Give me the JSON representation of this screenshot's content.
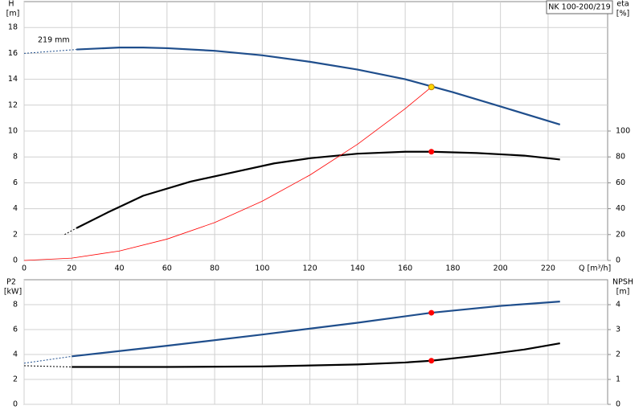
{
  "chart_data": [
    {
      "type": "line",
      "title": "NK 100-200/219",
      "annotation": "219 mm",
      "xlabel": "Q [m³/h]",
      "ylabel": "H",
      "yunit": "[m]",
      "y2label": "eta",
      "y2unit": "[%]",
      "xlim": [
        0,
        245
      ],
      "xticks": [
        0,
        20,
        40,
        60,
        80,
        100,
        120,
        140,
        160,
        180,
        200,
        220
      ],
      "ylim": [
        0,
        20
      ],
      "yticks": [
        0,
        2,
        4,
        6,
        8,
        10,
        12,
        14,
        16,
        18
      ],
      "y2lim": [
        0,
        200
      ],
      "y2ticks": [
        0,
        20,
        40,
        60,
        80,
        100
      ],
      "grid": true,
      "series": [
        {
          "color": "#1f4e8c",
          "dashed": true,
          "x": [
            0,
            22
          ],
          "values": [
            16.0,
            16.3
          ]
        },
        {
          "color": "#1f4e8c",
          "x": [
            22,
            40,
            50,
            60,
            80,
            100,
            120,
            140,
            160,
            171,
            180,
            200,
            225
          ],
          "values": [
            16.3,
            16.45,
            16.45,
            16.4,
            16.2,
            15.85,
            15.35,
            14.75,
            14.0,
            13.45,
            13.0,
            11.9,
            10.5
          ]
        },
        {
          "color": "#000000",
          "dashed": true,
          "axis": "y2",
          "x": [
            17,
            22
          ],
          "values": [
            20,
            25
          ]
        },
        {
          "color": "#000000",
          "axis": "y2",
          "x": [
            22,
            35,
            50,
            70,
            90,
            105,
            120,
            140,
            160,
            171,
            190,
            210,
            225
          ],
          "values": [
            25,
            37,
            50,
            61,
            69,
            75,
            79,
            82.5,
            84,
            84,
            83,
            81,
            78
          ]
        },
        {
          "color": "#ff0000",
          "thin": true,
          "x": [
            0,
            20,
            40,
            60,
            80,
            100,
            120,
            140,
            160,
            171
          ],
          "values": [
            0,
            0.18,
            0.73,
            1.65,
            2.93,
            4.58,
            6.6,
            8.98,
            11.73,
            13.4
          ]
        }
      ],
      "points": [
        {
          "x": 171,
          "y": 13.4,
          "color": "#ffd700"
        },
        {
          "x": 171,
          "y": 84,
          "axis": "y2",
          "color": "#ff0000"
        }
      ]
    },
    {
      "type": "line",
      "ylabel": "P2",
      "yunit": "[kW]",
      "y2label": "NPSH",
      "y2unit": "[m]",
      "xlim": [
        0,
        245
      ],
      "xticks": [
        0,
        20,
        40,
        60,
        80,
        100,
        120,
        140,
        160,
        180,
        200,
        220
      ],
      "ylim": [
        0,
        10
      ],
      "yticks": [
        0,
        2,
        4,
        6,
        8
      ],
      "y2lim": [
        0,
        5
      ],
      "y2ticks": [
        0,
        1,
        2,
        3,
        4
      ],
      "grid": true,
      "series": [
        {
          "color": "#1f4e8c",
          "dashed": true,
          "x": [
            0,
            20
          ],
          "values": [
            3.3,
            3.85
          ]
        },
        {
          "color": "#1f4e8c",
          "x": [
            20,
            60,
            100,
            140,
            171,
            200,
            225
          ],
          "values": [
            3.85,
            4.7,
            5.6,
            6.55,
            7.35,
            7.9,
            8.25
          ]
        },
        {
          "color": "#000000",
          "dashed": true,
          "axis": "y2",
          "x": [
            0,
            20
          ],
          "values": [
            1.55,
            1.5
          ]
        },
        {
          "color": "#000000",
          "axis": "y2",
          "x": [
            20,
            60,
            100,
            140,
            160,
            171,
            190,
            210,
            225
          ],
          "values": [
            1.5,
            1.5,
            1.52,
            1.6,
            1.68,
            1.75,
            1.95,
            2.2,
            2.45
          ]
        }
      ],
      "points": [
        {
          "x": 171,
          "y": 7.35,
          "color": "#ff0000"
        },
        {
          "x": 171,
          "y": 1.75,
          "axis": "y2",
          "color": "#ff0000"
        }
      ]
    }
  ]
}
